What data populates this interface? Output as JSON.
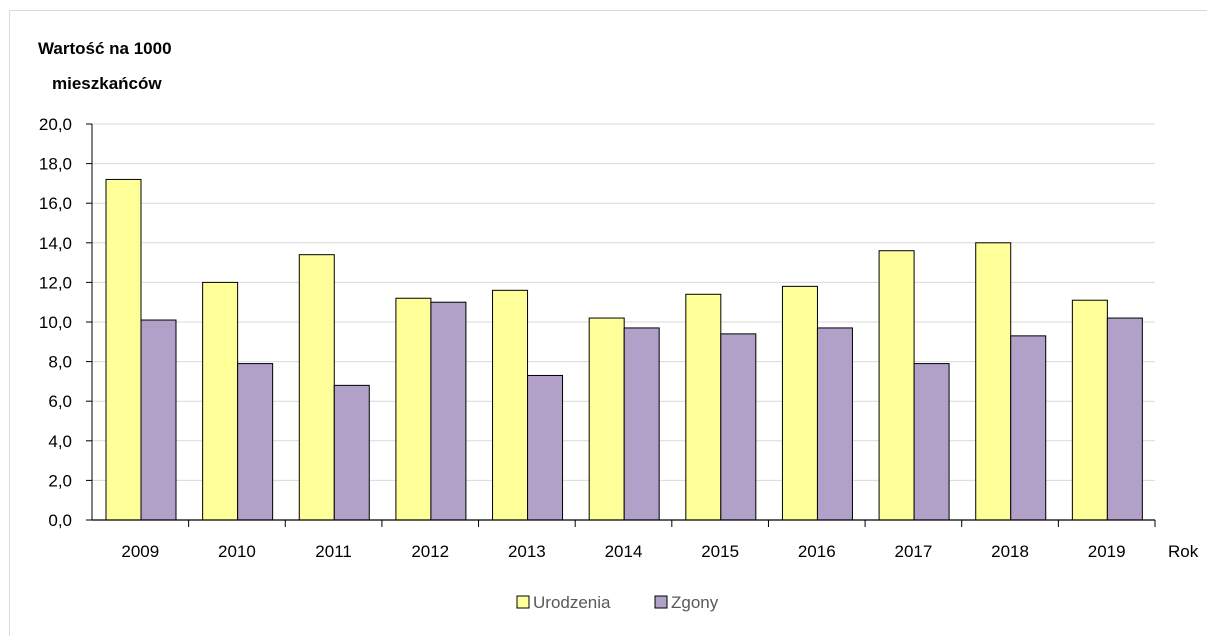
{
  "chart_data": {
    "type": "bar",
    "ylabel_lines": [
      "Wartość na 1000",
      "mieszkańców"
    ],
    "xlabel": "Rok",
    "categories": [
      "2009",
      "2010",
      "2011",
      "2012",
      "2013",
      "2014",
      "2015",
      "2016",
      "2017",
      "2018",
      "2019"
    ],
    "series": [
      {
        "name": "Urodzenia",
        "color": "#ffff99",
        "values": [
          17.2,
          12.0,
          13.4,
          11.2,
          11.6,
          10.2,
          11.4,
          11.8,
          13.6,
          14.0,
          11.1
        ]
      },
      {
        "name": "Zgony",
        "color": "#b1a0c7",
        "values": [
          10.1,
          7.9,
          6.8,
          11.0,
          7.3,
          9.7,
          9.4,
          9.7,
          7.9,
          9.3,
          10.2
        ]
      }
    ],
    "ylim": [
      0,
      20
    ],
    "yticks": [
      "0,0",
      "2,0",
      "4,0",
      "6,0",
      "8,0",
      "10,0",
      "12,0",
      "14,0",
      "16,0",
      "18,0",
      "20,0"
    ],
    "grid": true,
    "legend_position": "bottom"
  }
}
